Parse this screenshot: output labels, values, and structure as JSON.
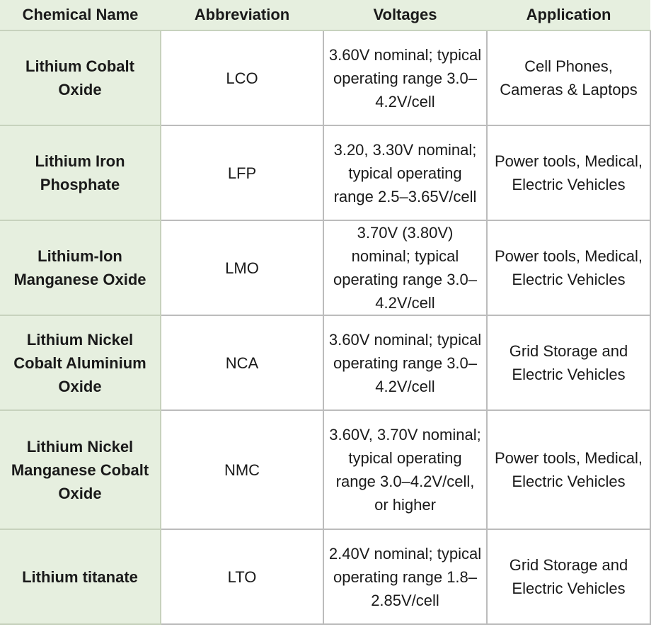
{
  "table": {
    "headers": [
      "Chemical Name",
      "Abbreviation",
      "Voltages",
      "Application"
    ],
    "rows": [
      {
        "name": "Lithium Cobalt Oxide",
        "abbr": "LCO",
        "voltage": "3.60V nominal; typical operating range 3.0–4.2V/cell",
        "application": "Cell Phones, Cameras & Laptops"
      },
      {
        "name": "Lithium Iron Phosphate",
        "abbr": "LFP",
        "voltage": "3.20, 3.30V nominal; typical operating range 2.5–3.65V/cell",
        "application": "Power tools, Medical, Electric Vehicles"
      },
      {
        "name": "Lithium-Ion Manganese Oxide",
        "abbr": "LMO",
        "voltage": "3.70V (3.80V) nominal; typical operating range 3.0–4.2V/cell",
        "application": "Power tools, Medical, Electric Vehicles"
      },
      {
        "name": "Lithium Nickel Cobalt Aluminium Oxide",
        "abbr": "NCA",
        "voltage": "3.60V nominal; typical operating range 3.0–4.2V/cell",
        "application": "Grid Storage and Electric Vehicles"
      },
      {
        "name": "Lithium Nickel Manganese Cobalt Oxide",
        "abbr": "NMC",
        "voltage": "3.60V, 3.70V nominal; typical operating range 3.0–4.2V/cell, or higher",
        "application": "Power tools, Medical, Electric Vehicles"
      },
      {
        "name": "Lithium titanate",
        "abbr": "LTO",
        "voltage": "2.40V nominal; typical operating range 1.8–2.85V/cell",
        "application": "Grid Storage and Electric Vehicles"
      }
    ]
  },
  "colors": {
    "header_bg": "#e6efdf",
    "name_col_bg": "#e6efdf",
    "grid_line": "#bcbcbc",
    "text": "#1a1a1a"
  }
}
